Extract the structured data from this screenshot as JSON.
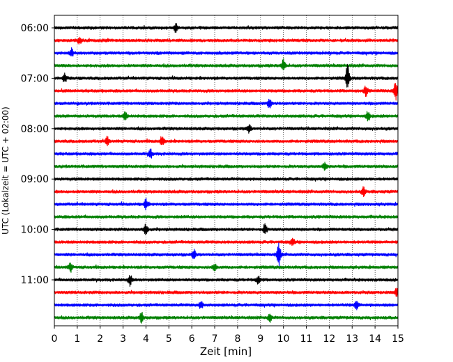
{
  "chart_data": {
    "type": "line",
    "title": "",
    "xlabel": "Zeit  [min]",
    "ylabel": "UTC (Lokalzeit = UTC + 02:00)",
    "xlim": [
      0,
      15
    ],
    "x_ticks": [
      "0",
      "1",
      "2",
      "3",
      "4",
      "5",
      "6",
      "7",
      "8",
      "9",
      "10",
      "11",
      "12",
      "13",
      "14",
      "15"
    ],
    "y_tick_labels": [
      "06:00",
      "07:00",
      "08:00",
      "09:00",
      "10:00",
      "11:00"
    ],
    "start_time": "06:00",
    "trace_interval_minutes": 15,
    "grid": "vertical-dotted",
    "colors": [
      "#000000",
      "#ff0000",
      "#0000ff",
      "#008000"
    ],
    "traces": [
      {
        "time": "06:00",
        "color": "#000000"
      },
      {
        "time": "06:15",
        "color": "#ff0000"
      },
      {
        "time": "06:30",
        "color": "#0000ff"
      },
      {
        "time": "06:45",
        "color": "#008000"
      },
      {
        "time": "07:00",
        "color": "#000000"
      },
      {
        "time": "07:15",
        "color": "#ff0000"
      },
      {
        "time": "07:30",
        "color": "#0000ff"
      },
      {
        "time": "07:45",
        "color": "#008000"
      },
      {
        "time": "08:00",
        "color": "#000000"
      },
      {
        "time": "08:15",
        "color": "#ff0000"
      },
      {
        "time": "08:30",
        "color": "#0000ff"
      },
      {
        "time": "08:45",
        "color": "#008000"
      },
      {
        "time": "09:00",
        "color": "#000000"
      },
      {
        "time": "09:15",
        "color": "#ff0000"
      },
      {
        "time": "09:30",
        "color": "#0000ff"
      },
      {
        "time": "09:45",
        "color": "#008000"
      },
      {
        "time": "10:00",
        "color": "#000000"
      },
      {
        "time": "10:15",
        "color": "#ff0000"
      },
      {
        "time": "10:30",
        "color": "#0000ff"
      },
      {
        "time": "10:45",
        "color": "#008000"
      },
      {
        "time": "11:00",
        "color": "#000000"
      },
      {
        "time": "11:15",
        "color": "#ff0000"
      },
      {
        "time": "11:30",
        "color": "#0000ff"
      },
      {
        "time": "11:45",
        "color": "#008000"
      }
    ],
    "events": [
      {
        "time": "06:00",
        "minute": 5.3,
        "amplitude": 0.5
      },
      {
        "time": "06:15",
        "minute": 1.1,
        "amplitude": 0.4
      },
      {
        "time": "06:30",
        "minute": 0.75,
        "amplitude": 0.5
      },
      {
        "time": "06:45",
        "minute": 10.0,
        "amplitude": 0.8
      },
      {
        "time": "07:00",
        "minute": 12.8,
        "amplitude": 1.6
      },
      {
        "time": "07:00",
        "minute": 0.45,
        "amplitude": 0.5
      },
      {
        "time": "07:15",
        "minute": 14.9,
        "amplitude": 1.1
      },
      {
        "time": "07:15",
        "minute": 13.6,
        "amplitude": 0.6
      },
      {
        "time": "07:30",
        "minute": 9.4,
        "amplitude": 0.6
      },
      {
        "time": "07:45",
        "minute": 13.7,
        "amplitude": 0.6
      },
      {
        "time": "07:45",
        "minute": 3.1,
        "amplitude": 0.5
      },
      {
        "time": "08:00",
        "minute": 8.5,
        "amplitude": 0.5
      },
      {
        "time": "08:15",
        "minute": 2.3,
        "amplitude": 0.5
      },
      {
        "time": "08:15",
        "minute": 4.7,
        "amplitude": 0.6
      },
      {
        "time": "08:30",
        "minute": 4.2,
        "amplitude": 0.5
      },
      {
        "time": "08:45",
        "minute": 11.8,
        "amplitude": 0.5
      },
      {
        "time": "09:15",
        "minute": 13.5,
        "amplitude": 0.5
      },
      {
        "time": "09:30",
        "minute": 4.0,
        "amplitude": 0.6
      },
      {
        "time": "10:00",
        "minute": 4.0,
        "amplitude": 0.7
      },
      {
        "time": "10:00",
        "minute": 9.2,
        "amplitude": 0.6
      },
      {
        "time": "10:15",
        "minute": 10.4,
        "amplitude": 0.4
      },
      {
        "time": "10:30",
        "minute": 9.8,
        "amplitude": 1.3
      },
      {
        "time": "10:30",
        "minute": 6.1,
        "amplitude": 0.5
      },
      {
        "time": "10:45",
        "minute": 0.7,
        "amplitude": 0.5
      },
      {
        "time": "10:45",
        "minute": 7.0,
        "amplitude": 0.5
      },
      {
        "time": "11:00",
        "minute": 3.3,
        "amplitude": 0.6
      },
      {
        "time": "11:00",
        "minute": 8.9,
        "amplitude": 0.5
      },
      {
        "time": "11:15",
        "minute": 14.95,
        "amplitude": 0.6
      },
      {
        "time": "11:30",
        "minute": 13.2,
        "amplitude": 0.6
      },
      {
        "time": "11:30",
        "minute": 6.4,
        "amplitude": 0.4
      },
      {
        "time": "11:45",
        "minute": 3.8,
        "amplitude": 0.6
      },
      {
        "time": "11:45",
        "minute": 9.4,
        "amplitude": 0.5
      }
    ]
  }
}
